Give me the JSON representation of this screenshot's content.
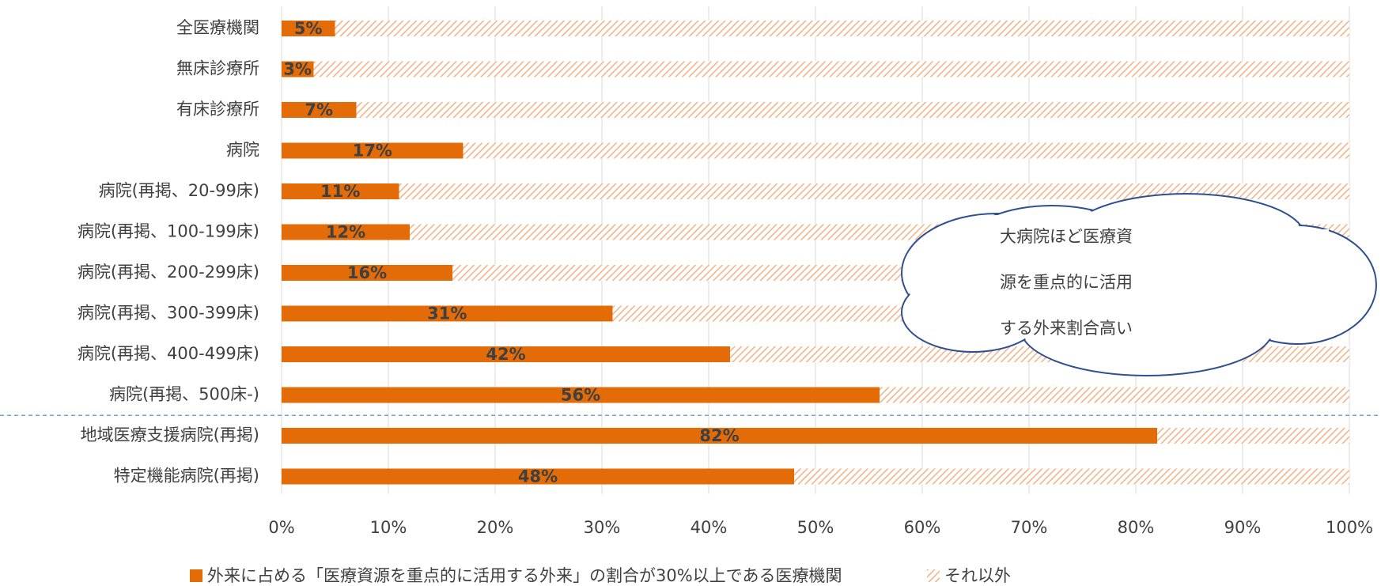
{
  "chart_data": {
    "type": "stacked_barh",
    "categories": [
      "全医療機関",
      "無床診療所",
      "有床診療所",
      "病院",
      "病院(再掲、20-99床)",
      "病院(再掲、100-199床)",
      "病院(再掲、200-299床)",
      "病院(再掲、300-399床)",
      "病院(再掲、400-499床)",
      "病院(再掲、500床-)",
      "地域医療支援病院(再掲)",
      "特定機能病院(再掲)"
    ],
    "series": [
      {
        "name": "外来に占める「医療資源を重点的に活用する外来」の割合が30%以上である医療機関",
        "color": "#e36c09",
        "values": [
          5,
          3,
          7,
          17,
          11,
          12,
          16,
          31,
          42,
          56,
          82,
          48
        ],
        "value_labels": [
          "5%",
          "3%",
          "7%",
          "17%",
          "11%",
          "12%",
          "16%",
          "31%",
          "42%",
          "56%",
          "82%",
          "48%"
        ]
      },
      {
        "name": "それ以外",
        "color": "#f4b183",
        "pattern": "hatch",
        "values": [
          95,
          97,
          93,
          83,
          89,
          88,
          84,
          69,
          58,
          44,
          18,
          52
        ]
      }
    ],
    "xlim": [
      0,
      100
    ],
    "xticks": [
      {
        "value": 0,
        "label": "0%"
      },
      {
        "value": 10,
        "label": "10%"
      },
      {
        "value": 20,
        "label": "20%"
      },
      {
        "value": 30,
        "label": "30%"
      },
      {
        "value": 40,
        "label": "40%"
      },
      {
        "value": 50,
        "label": "50%"
      },
      {
        "value": 60,
        "label": "60%"
      },
      {
        "value": 70,
        "label": "70%"
      },
      {
        "value": 80,
        "label": "80%"
      },
      {
        "value": 90,
        "label": "90%"
      },
      {
        "value": 100,
        "label": "100%"
      }
    ],
    "grid": true,
    "legend": "bottom",
    "annotation": [
      "大病院ほど医療資",
      "源を重点的に活用",
      "する外来割合高い"
    ]
  }
}
